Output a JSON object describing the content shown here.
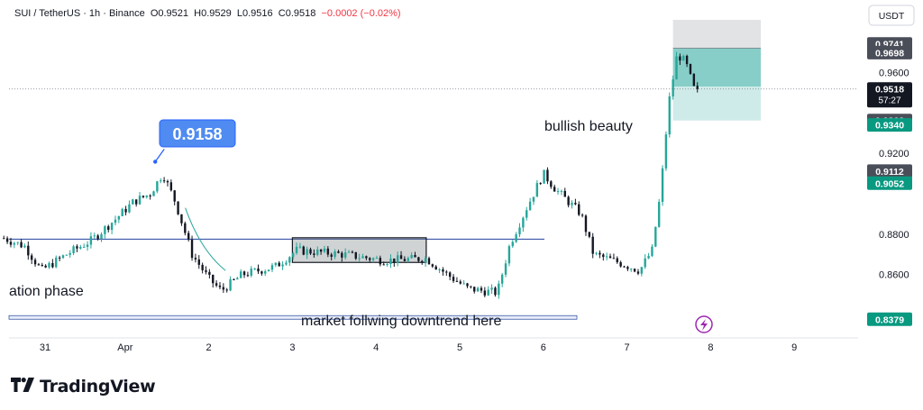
{
  "header": {
    "title": "SUI / TetherUS · 1h · Binance",
    "open": "O0.9521",
    "high": "H0.9529",
    "low": "L0.9516",
    "close": "C0.9518",
    "change": "−0.0002 (−0.02%)"
  },
  "currency_button": "USDT",
  "brand": {
    "name": "TradingView",
    "mark": "TV"
  },
  "colors": {
    "up": "#26a69a",
    "down": "#131722",
    "accent": "#2962ff",
    "sell": "#f23645"
  },
  "chart_data": {
    "type": "candlestick",
    "x_ticks": [
      "31",
      "Apr",
      "2",
      "3",
      "4",
      "5",
      "6",
      "7",
      "8",
      "9"
    ],
    "y_ticks": [
      "0.9600",
      "0.9200",
      "0.8800",
      "0.8600"
    ],
    "ylim": [
      0.83,
      0.986
    ],
    "price_labels": [
      {
        "value": 0.9741,
        "text": "0.9741",
        "color": "#4a4e59"
      },
      {
        "value": 0.9698,
        "text": "0.9698",
        "color": "#4a4e59"
      },
      {
        "value": 0.9518,
        "text": "0.9518",
        "sub": "57:27",
        "color": "#131722"
      },
      {
        "value": 0.9362,
        "text": "0.9362",
        "color": "#4a4e59"
      },
      {
        "value": 0.934,
        "text": "0.9340",
        "color": "#089981"
      },
      {
        "value": 0.9112,
        "text": "0.9112",
        "color": "#4a4e59"
      },
      {
        "value": 0.9052,
        "text": "0.9052",
        "color": "#089981"
      },
      {
        "value": 0.8379,
        "text": "0.8379",
        "color": "#089981"
      }
    ],
    "current_price": 0.9518,
    "callout": {
      "text": "0.9158",
      "value": 0.9158
    },
    "annotations": [
      {
        "text": "bullish beauty"
      },
      {
        "text": "ation phase"
      },
      {
        "text": "market follwing downtrend here"
      }
    ],
    "support_line": 0.8775,
    "bottom_line": 0.8388,
    "consolidation_box": {
      "x_start": 3.0,
      "x_end": 4.6,
      "top": 0.8782,
      "bottom": 0.866
    },
    "position_box": {
      "x_start": 7.55,
      "x_end": 8.6,
      "top": 0.986,
      "entry": 0.972,
      "target": 0.9362
    },
    "anchors": [
      [
        -0.45,
        0.878
      ],
      [
        -0.2,
        0.874
      ],
      [
        0.0,
        0.862
      ],
      [
        0.3,
        0.87
      ],
      [
        0.6,
        0.877
      ],
      [
        0.9,
        0.888
      ],
      [
        1.1,
        0.896
      ],
      [
        1.3,
        0.9
      ],
      [
        1.45,
        0.91
      ],
      [
        1.6,
        0.896
      ],
      [
        1.8,
        0.87
      ],
      [
        2.0,
        0.858
      ],
      [
        2.15,
        0.852
      ],
      [
        2.4,
        0.86
      ],
      [
        2.8,
        0.864
      ],
      [
        3.05,
        0.872
      ],
      [
        3.6,
        0.87
      ],
      [
        4.1,
        0.867
      ],
      [
        4.6,
        0.868
      ],
      [
        4.85,
        0.86
      ],
      [
        5.1,
        0.853
      ],
      [
        5.45,
        0.851
      ],
      [
        5.6,
        0.875
      ],
      [
        5.8,
        0.893
      ],
      [
        6.0,
        0.91
      ],
      [
        6.15,
        0.902
      ],
      [
        6.45,
        0.89
      ],
      [
        6.6,
        0.87
      ],
      [
        6.9,
        0.866
      ],
      [
        7.15,
        0.862
      ],
      [
        7.3,
        0.872
      ],
      [
        7.4,
        0.9
      ],
      [
        7.5,
        0.945
      ],
      [
        7.6,
        0.969
      ],
      [
        7.7,
        0.965
      ],
      [
        7.8,
        0.952
      ],
      [
        7.87,
        0.9518
      ]
    ]
  }
}
